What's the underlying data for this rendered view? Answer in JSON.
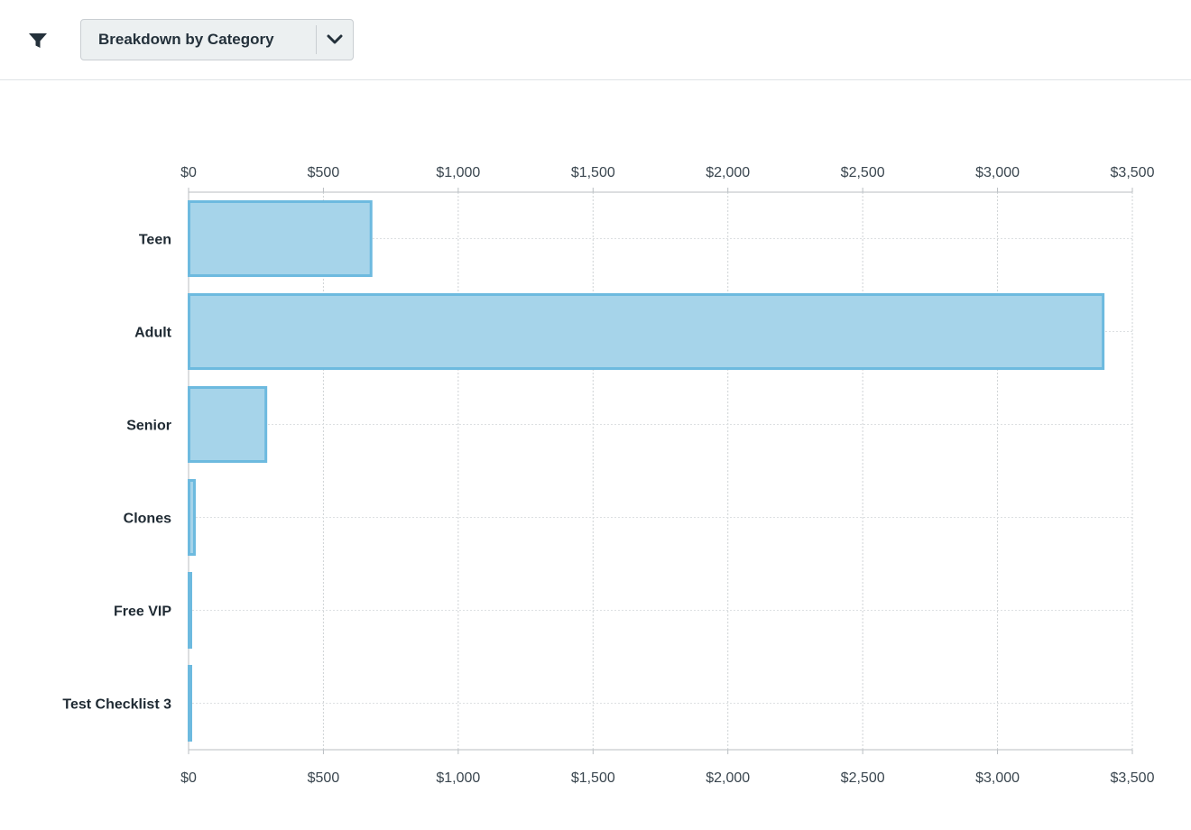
{
  "toolbar": {
    "filter_icon": "filter-icon",
    "dropdown": {
      "selected": "Breakdown by Category",
      "icon": "chevron-down-icon"
    }
  },
  "colors": {
    "bar_fill": "#a6d4ea",
    "bar_stroke": "#6dbadf",
    "grid": "#cfd3d6",
    "text": "#1f2a33"
  },
  "chart_data": {
    "type": "bar",
    "orientation": "horizontal",
    "categories": [
      "Teen",
      "Adult",
      "Senior",
      "Clones",
      "Free VIP",
      "Test Checklist 3"
    ],
    "values": [
      675,
      3390,
      285,
      20,
      4,
      4
    ],
    "xlim": [
      0,
      3500
    ],
    "x_ticks": [
      0,
      500,
      1000,
      1500,
      2000,
      2500,
      3000,
      3500
    ],
    "x_tick_labels": [
      "$0",
      "$500",
      "$1,000",
      "$1,500",
      "$2,000",
      "$2,500",
      "$3,000",
      "$3,500"
    ],
    "axis_positions": [
      "top",
      "bottom"
    ],
    "grid": true,
    "title": "",
    "xlabel": "",
    "ylabel": ""
  }
}
